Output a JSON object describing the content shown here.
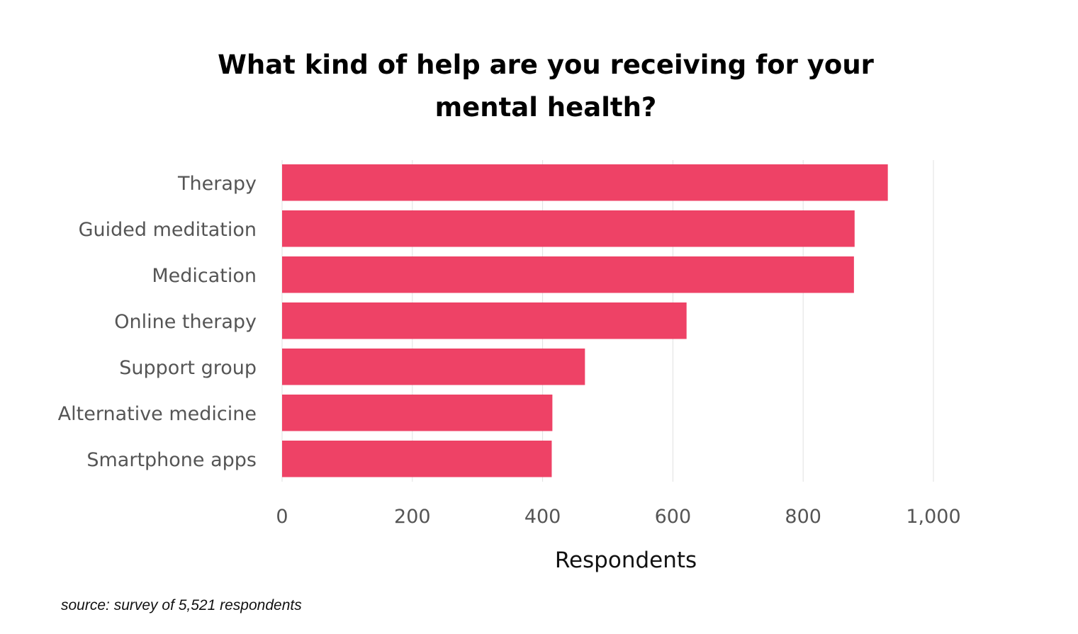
{
  "chart_data": {
    "type": "bar",
    "orientation": "horizontal",
    "title_lines": [
      "What kind of help are you receiving for your",
      "mental health?"
    ],
    "categories": [
      "Therapy",
      "Guided meditation",
      "Medication",
      "Online therapy",
      "Support group",
      "Alternative medicine",
      "Smartphone apps"
    ],
    "values": [
      930,
      879,
      878,
      621,
      465,
      415,
      414
    ],
    "xlabel": "Respondents",
    "ylabel": "",
    "xlim": [
      0,
      1100
    ],
    "xticks": [
      0,
      200,
      400,
      600,
      800,
      1000
    ],
    "xtick_labels": [
      "0",
      "200",
      "400",
      "600",
      "800",
      "1,000"
    ],
    "grid": "vertical",
    "legend": "none",
    "bar_color": "#EE4266",
    "grid_color": "#E0E0E0",
    "label_color": "#555555"
  },
  "source_note": "source: survey of 5,521 respondents"
}
